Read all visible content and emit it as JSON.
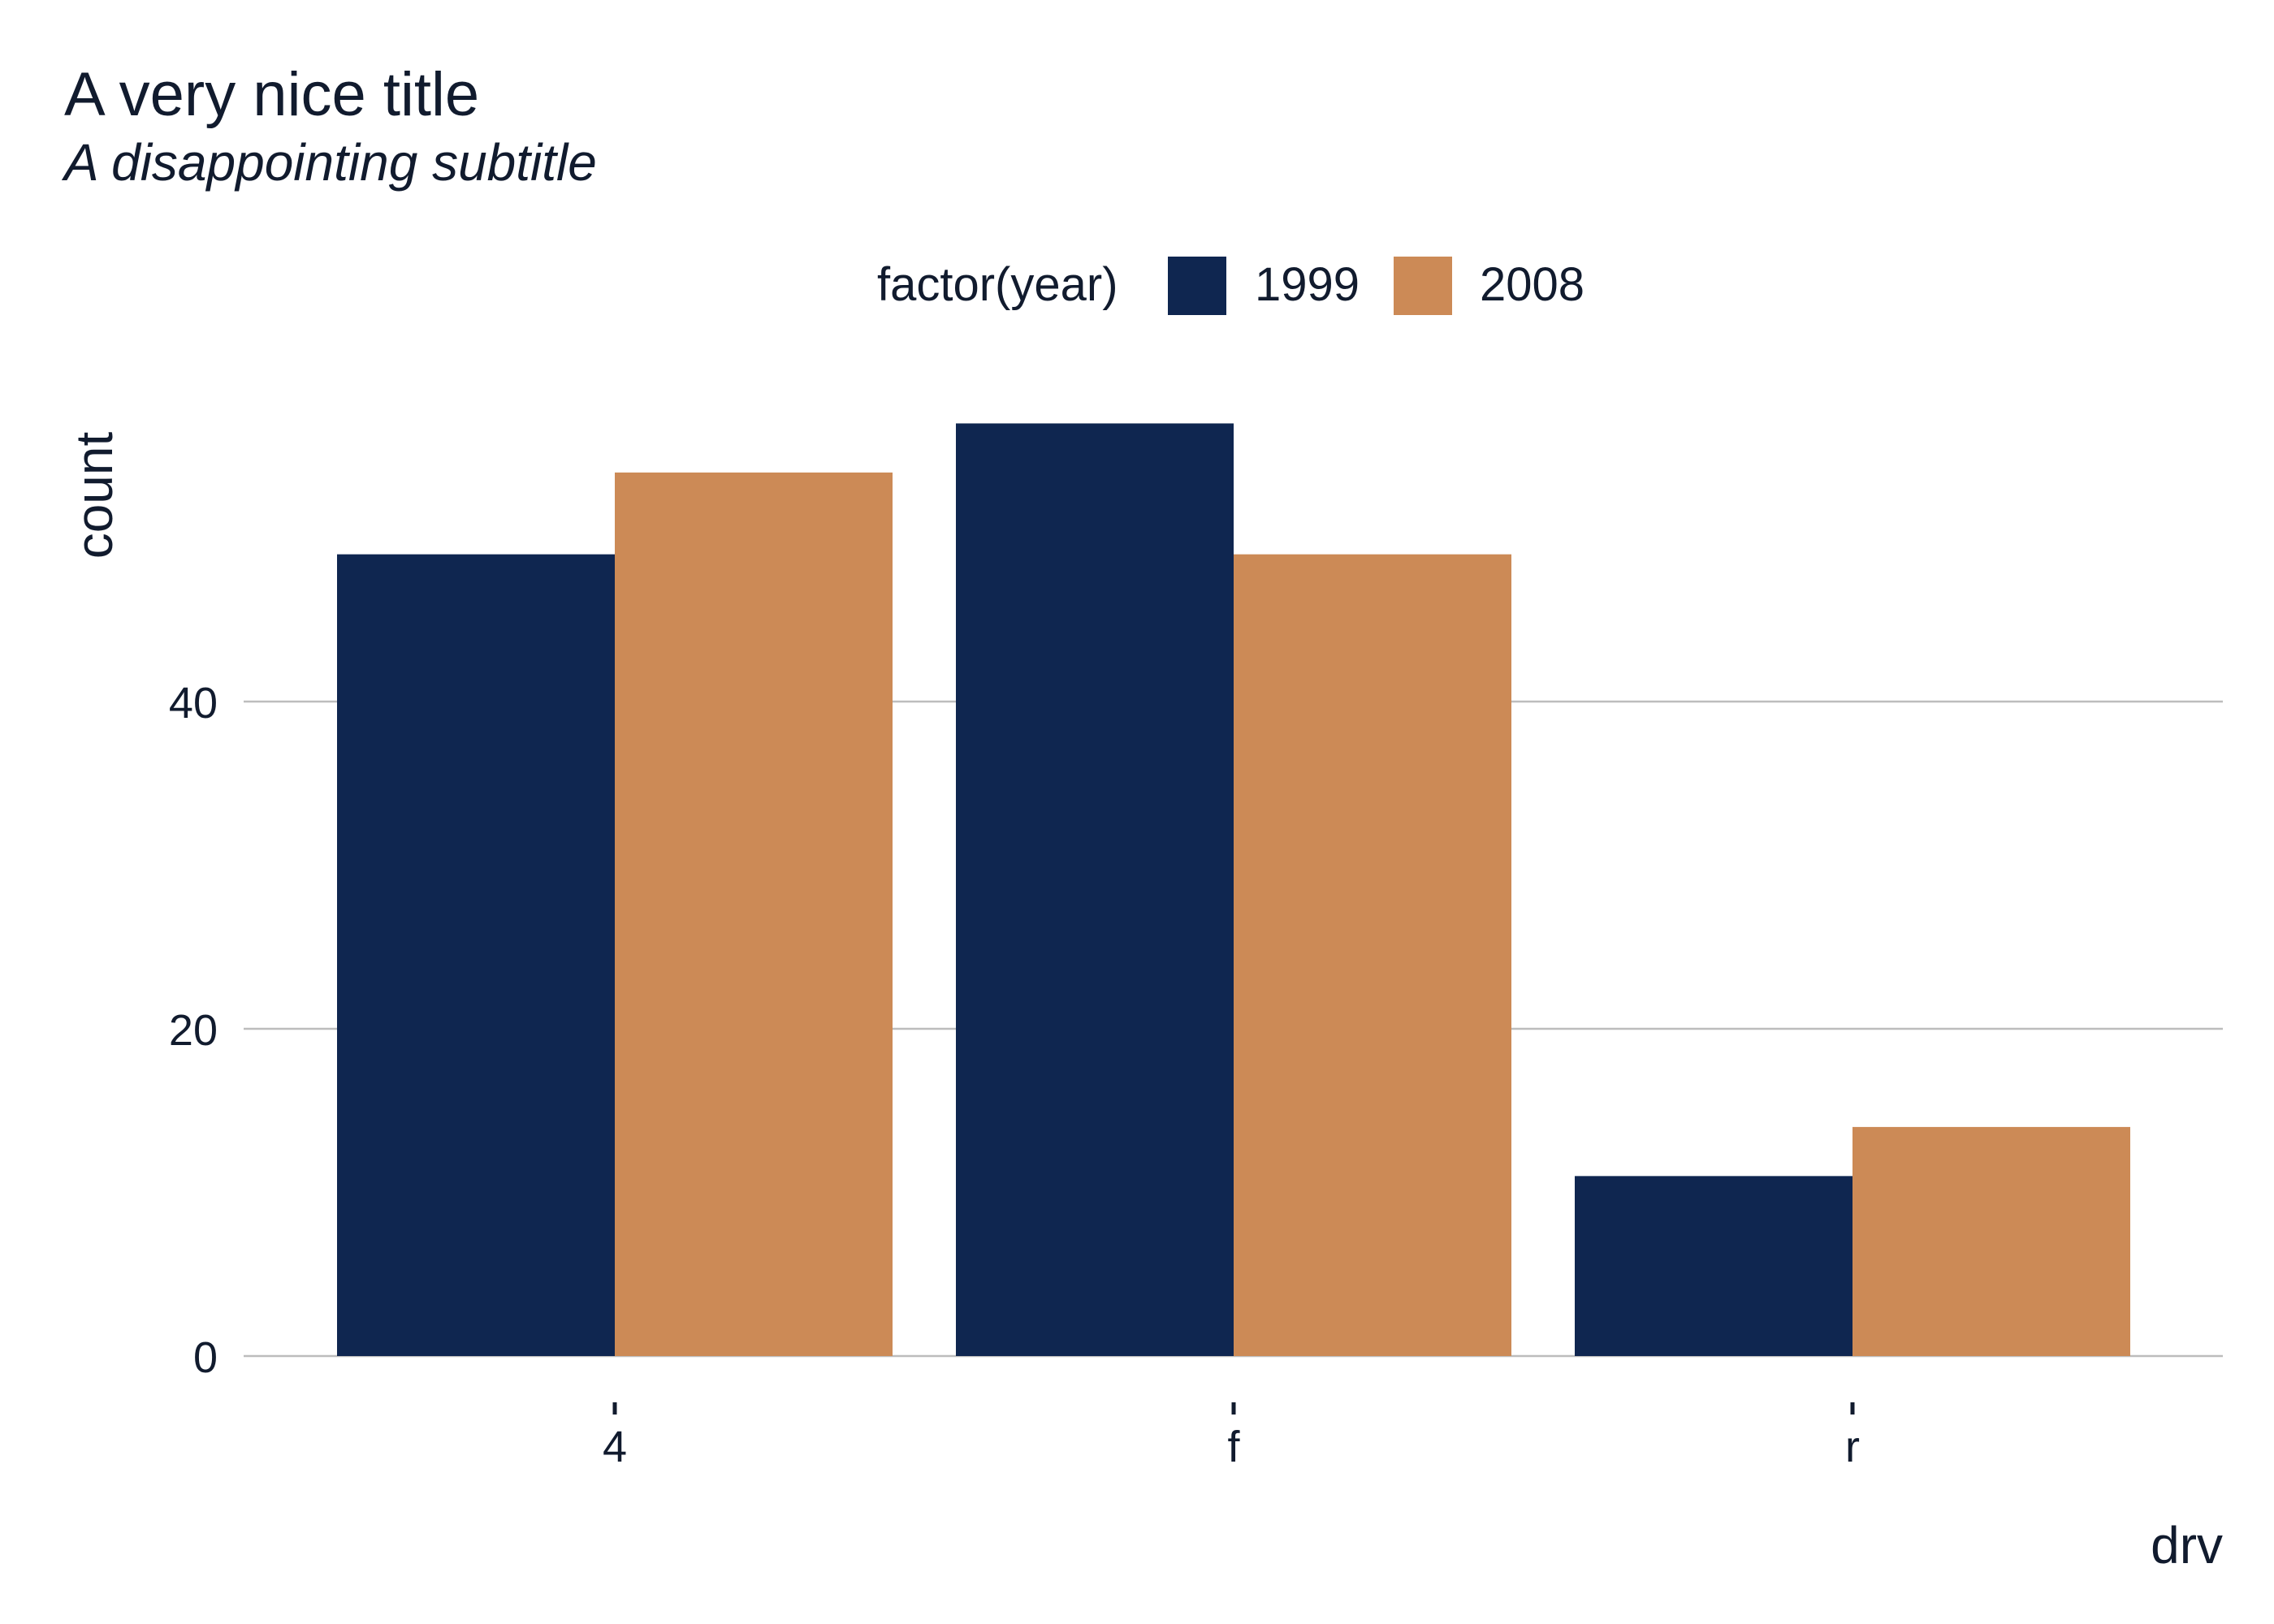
{
  "chart_data": {
    "type": "bar",
    "title": "A very nice title",
    "subtitle": "A disappointing subtitle",
    "xlabel": "drv",
    "ylabel": "count",
    "categories": [
      "4",
      "f",
      "r"
    ],
    "series": [
      {
        "name": "1999",
        "color": "#0f2650",
        "values": [
          49,
          57,
          11
        ]
      },
      {
        "name": "2008",
        "color": "#cc8a56",
        "values": [
          54,
          49,
          14
        ]
      }
    ],
    "legend": {
      "title": "factor(year)",
      "position": "top"
    },
    "ylim": [
      0,
      57
    ],
    "yticks": [
      "0",
      "20",
      "40"
    ],
    "ytick_values": [
      0,
      20,
      40
    ],
    "grid": true
  }
}
